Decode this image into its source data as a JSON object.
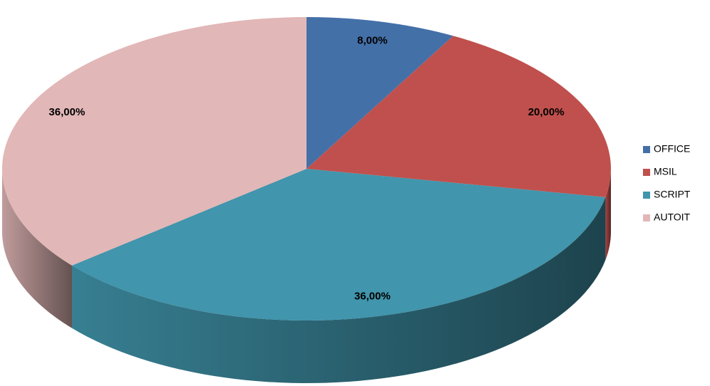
{
  "chart_data": {
    "type": "pie",
    "categories": [
      "OFFICE",
      "MSIL",
      "SCRIPT",
      "AUTOIT"
    ],
    "values": [
      8,
      20,
      36,
      36
    ],
    "value_labels": [
      "8,00%",
      "20,00%",
      "36,00%",
      "36,00%"
    ],
    "colors": [
      "#4470a8",
      "#c0504d",
      "#4195ac",
      "#e2b7b7"
    ],
    "legend": "right"
  }
}
